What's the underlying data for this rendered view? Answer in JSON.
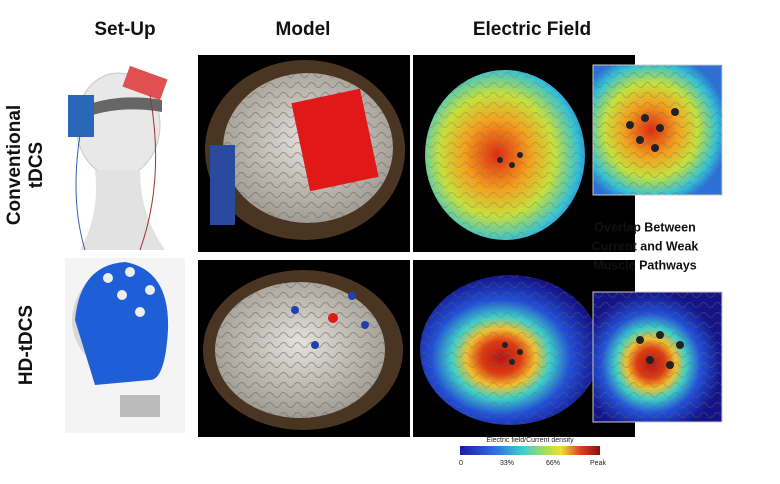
{
  "columns": [
    "Set-Up",
    "Model",
    "Electric Field"
  ],
  "rows": [
    {
      "label_lines": [
        "Conventional",
        "tDCS"
      ]
    },
    {
      "label_lines": [
        "HD-tDCS"
      ]
    }
  ],
  "annotation": {
    "lines": [
      "Overlap Between",
      "Current and Weak",
      "Muscle Pathways"
    ]
  },
  "colorbar": {
    "title": "Electric field/Current density",
    "ticks": [
      "0",
      "33%",
      "66%",
      "Peak"
    ]
  }
}
